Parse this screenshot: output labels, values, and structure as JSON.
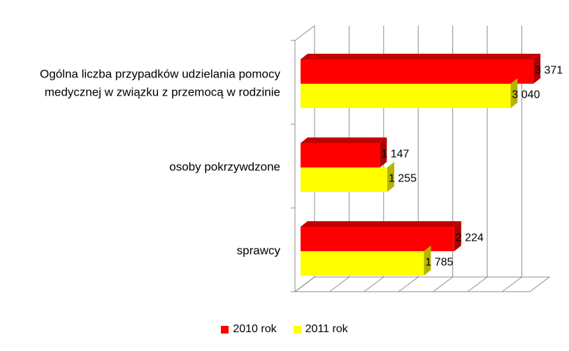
{
  "chart_data": {
    "type": "bar",
    "orientation": "horizontal",
    "style": "3d",
    "categories": [
      "Ogólna liczba przypadków udzielania pomocy medycznej w związku z przemocą w rodzinie",
      "osoby pokrzywdzone",
      "sprawcy"
    ],
    "category_lines": [
      [
        "Ogólna liczba przypadków udzielania pomocy",
        "medycznej w związku z przemocą w rodzinie"
      ],
      [
        "osoby pokrzywdzone"
      ],
      [
        "sprawcy"
      ]
    ],
    "series": [
      {
        "name": "2010 rok",
        "color": "#ff0000",
        "values": [
          3371,
          1147,
          2224
        ],
        "labels": [
          "3 371",
          "1 147",
          "2 224"
        ]
      },
      {
        "name": "2011 rok",
        "color": "#ffff00",
        "values": [
          3040,
          1255,
          1785
        ],
        "labels": [
          "3 040",
          "1 255",
          "1 785"
        ]
      }
    ],
    "xlim": [
      0,
      3400
    ],
    "grid": true,
    "legend_position": "bottom",
    "title": "",
    "xlabel": "",
    "ylabel": ""
  }
}
